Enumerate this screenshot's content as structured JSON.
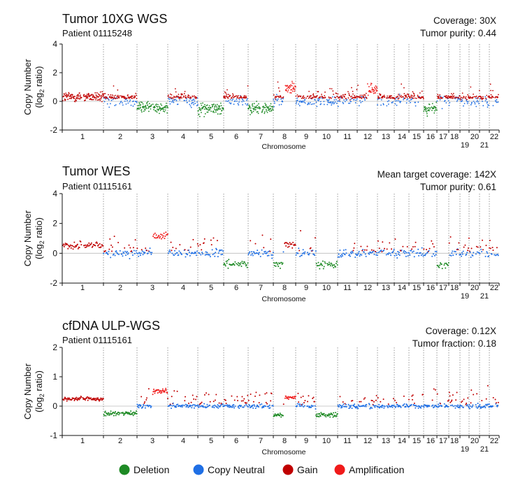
{
  "legend": [
    {
      "label": "Deletion",
      "color": "#1e8a25"
    },
    {
      "label": "Copy Neutral",
      "color": "#1f6fe5"
    },
    {
      "label": "Gain",
      "color": "#c00000"
    },
    {
      "label": "Amplification",
      "color": "#f01a1a"
    }
  ],
  "chart_data": [
    {
      "type": "scatter",
      "title": "Tumor 10XG WGS",
      "subtitle": "Patient 01115248",
      "meta": [
        "Coverage: 30X",
        "Tumor purity: 0.44"
      ],
      "ylabel_line1": "Copy Number",
      "ylabel_line2": "(log",
      "ylabel_sub": "2",
      "ylabel_line3": " ratio)",
      "xlabel": "Chromosome",
      "ylim": [
        -2,
        4
      ],
      "yticks": [
        "-2",
        "0",
        "2",
        "4"
      ],
      "grid": "vertical dotted chromosome boundaries",
      "chromosomes_top": [
        "1",
        "2",
        "3",
        "4",
        "5",
        "6",
        "7",
        "8",
        "9",
        "10",
        "11",
        "12",
        "13",
        "14",
        "15",
        "16",
        "17",
        "18",
        "20",
        "22"
      ],
      "chromosomes_bottom": [
        "19",
        "21"
      ],
      "segments": [
        {
          "chrom": "1",
          "state": "Gain",
          "log2": 0.3
        },
        {
          "chrom": "3",
          "state": "Deletion",
          "log2": -0.4
        },
        {
          "chrom": "5",
          "state": "Deletion",
          "log2": -0.5
        },
        {
          "chrom": "7",
          "state": "Deletion",
          "log2": -0.5
        },
        {
          "chrom": "8q",
          "state": "Amplification",
          "log2": 0.95
        },
        {
          "chrom": "12q",
          "state": "Amplification",
          "log2": 0.85
        },
        {
          "chrom": "16",
          "state": "Deletion",
          "log2": -0.5
        }
      ]
    },
    {
      "type": "scatter",
      "title": "Tumor WES",
      "subtitle": "Patient 01115161",
      "meta": [
        "Mean target coverage: 142X",
        "Tumor purity: 0.61"
      ],
      "ylabel_line1": "Copy Number",
      "ylabel_line2": "(log",
      "ylabel_sub": "2",
      "ylabel_line3": " ratio)",
      "xlabel": "Chromosome",
      "ylim": [
        -2,
        4
      ],
      "yticks": [
        "-2",
        "0",
        "2",
        "4"
      ],
      "grid": "vertical dotted chromosome boundaries",
      "chromosomes_top": [
        "1",
        "2",
        "3",
        "4",
        "5",
        "6",
        "7",
        "8",
        "9",
        "10",
        "11",
        "12",
        "13",
        "14",
        "15",
        "16",
        "17",
        "18",
        "20",
        "22"
      ],
      "chromosomes_bottom": [
        "19",
        "21"
      ],
      "segments": [
        {
          "chrom": "1",
          "state": "Gain",
          "log2": 0.5
        },
        {
          "chrom": "3q",
          "state": "Amplification",
          "log2": 1.1
        },
        {
          "chrom": "6",
          "state": "Deletion",
          "log2": -0.7
        },
        {
          "chrom": "8p",
          "state": "Deletion",
          "log2": -0.75
        },
        {
          "chrom": "8q",
          "state": "Gain",
          "log2": 0.6
        },
        {
          "chrom": "10",
          "state": "Deletion",
          "log2": -0.75
        },
        {
          "chrom": "17",
          "state": "Deletion",
          "log2": -0.8
        }
      ]
    },
    {
      "type": "scatter",
      "title": "cfDNA ULP-WGS",
      "subtitle": "Patient 01115161",
      "meta": [
        "Coverage: 0.12X",
        "Tumor fraction: 0.18"
      ],
      "ylabel_line1": "Copy Number",
      "ylabel_line2": "(log",
      "ylabel_sub": "2",
      "ylabel_line3": " ratio)",
      "xlabel": "Chromosome",
      "ylim": [
        -1,
        2
      ],
      "yticks": [
        "-1",
        "0",
        "1",
        "2"
      ],
      "grid": "vertical dotted chromosome boundaries",
      "chromosomes_top": [
        "1",
        "2",
        "3",
        "4",
        "5",
        "6",
        "7",
        "8",
        "9",
        "10",
        "11",
        "12",
        "13",
        "14",
        "15",
        "16",
        "17",
        "18",
        "20",
        "22"
      ],
      "chromosomes_bottom": [
        "19",
        "21"
      ],
      "segments": [
        {
          "chrom": "1",
          "state": "Gain",
          "log2": 0.25
        },
        {
          "chrom": "2",
          "state": "Deletion",
          "log2": -0.25
        },
        {
          "chrom": "3q",
          "state": "Amplification",
          "log2": 0.5
        },
        {
          "chrom": "8p",
          "state": "Deletion",
          "log2": -0.3
        },
        {
          "chrom": "8q",
          "state": "Amplification",
          "log2": 0.3
        },
        {
          "chrom": "10",
          "state": "Deletion",
          "log2": -0.3
        }
      ]
    }
  ]
}
